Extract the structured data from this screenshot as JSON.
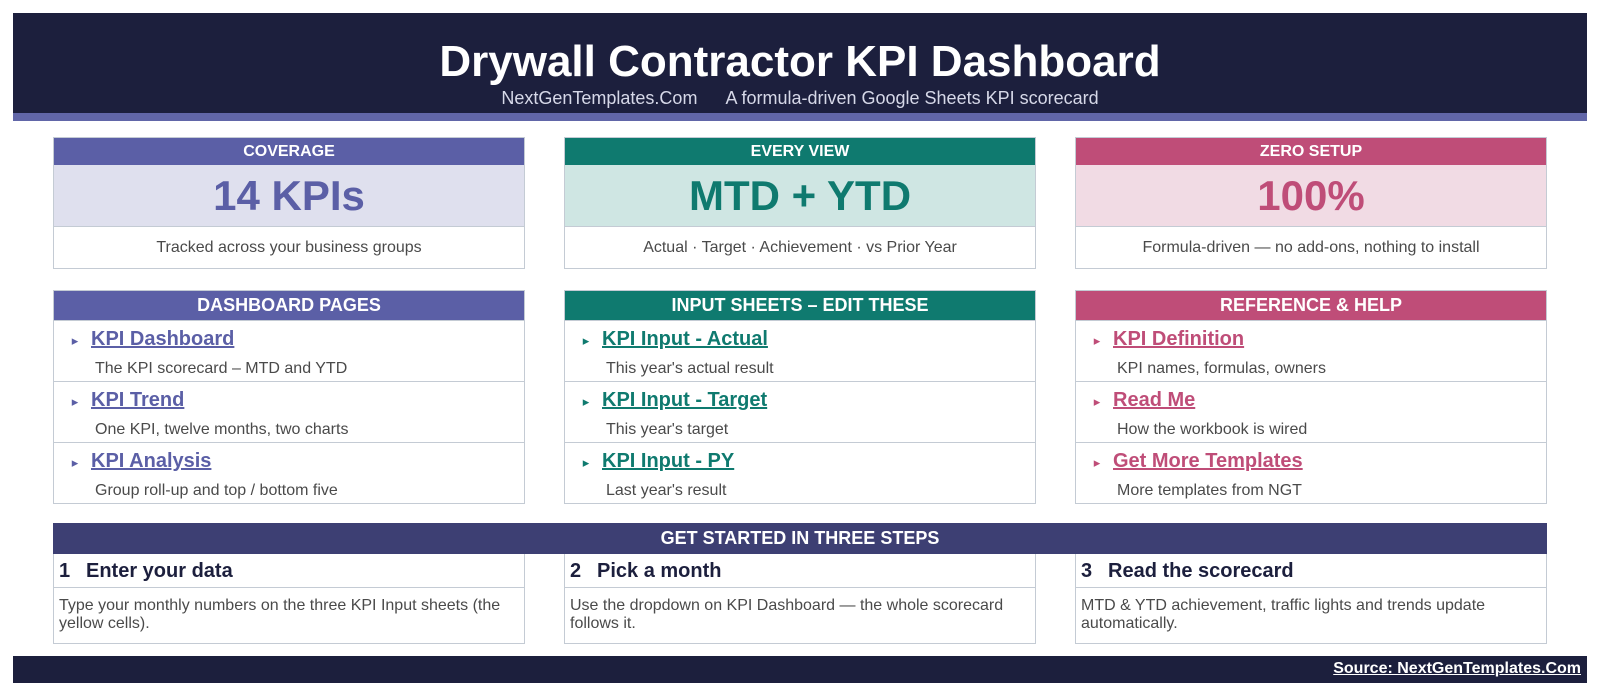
{
  "header": {
    "title": "Drywall Contractor KPI Dashboard",
    "site": "NextGenTemplates.Com",
    "tagline": "A formula-driven Google Sheets KPI scorecard"
  },
  "colors": {
    "navy": "#1c1f3d",
    "purple": "#5b5fa6",
    "purple_light": "#dfe0ee",
    "teal": "#0f7a6f",
    "teal_light": "#cfe6e3",
    "pink": "#bf4d78",
    "pink_light": "#f1dbe4",
    "steps_head": "#3d3f73"
  },
  "kpis": [
    {
      "label": "COVERAGE",
      "value": "14 KPIs",
      "desc": "Tracked across your business groups"
    },
    {
      "label": "EVERY VIEW",
      "value": "MTD + YTD",
      "desc": "Actual · Target · Achievement · vs Prior Year"
    },
    {
      "label": "ZERO SETUP",
      "value": "100%",
      "desc": "Formula-driven — no add-ons, nothing to install"
    }
  ],
  "sections": [
    {
      "title": "DASHBOARD PAGES",
      "items": [
        {
          "label": "KPI Dashboard",
          "desc": "The KPI scorecard – MTD and YTD"
        },
        {
          "label": "KPI Trend",
          "desc": "One KPI, twelve months, two charts"
        },
        {
          "label": "KPI Analysis",
          "desc": "Group roll-up and top / bottom five"
        }
      ]
    },
    {
      "title": "INPUT SHEETS – EDIT THESE",
      "items": [
        {
          "label": "KPI Input - Actual",
          "desc": "This year's actual result"
        },
        {
          "label": "KPI Input - Target",
          "desc": "This year's target"
        },
        {
          "label": "KPI Input - PY",
          "desc": "Last year's result"
        }
      ]
    },
    {
      "title": "REFERENCE & HELP",
      "items": [
        {
          "label": "KPI Definition",
          "desc": "KPI names, formulas, owners"
        },
        {
          "label": "Read Me",
          "desc": "How the workbook is wired"
        },
        {
          "label": "Get More Templates",
          "desc": "More templates from NGT"
        }
      ]
    }
  ],
  "arrow_icon": "▸",
  "steps": {
    "title": "GET STARTED IN THREE STEPS",
    "items": [
      {
        "num": "1",
        "title": "Enter your data",
        "desc": "Type your monthly numbers on the three KPI Input sheets (the yellow cells)."
      },
      {
        "num": "2",
        "title": "Pick a month",
        "desc": "Use the dropdown on KPI Dashboard — the whole scorecard follows it."
      },
      {
        "num": "3",
        "title": "Read the scorecard",
        "desc": "MTD & YTD achievement, traffic lights and trends update automatically."
      }
    ]
  },
  "footer": {
    "source": "Source: NextGenTemplates.Com"
  }
}
